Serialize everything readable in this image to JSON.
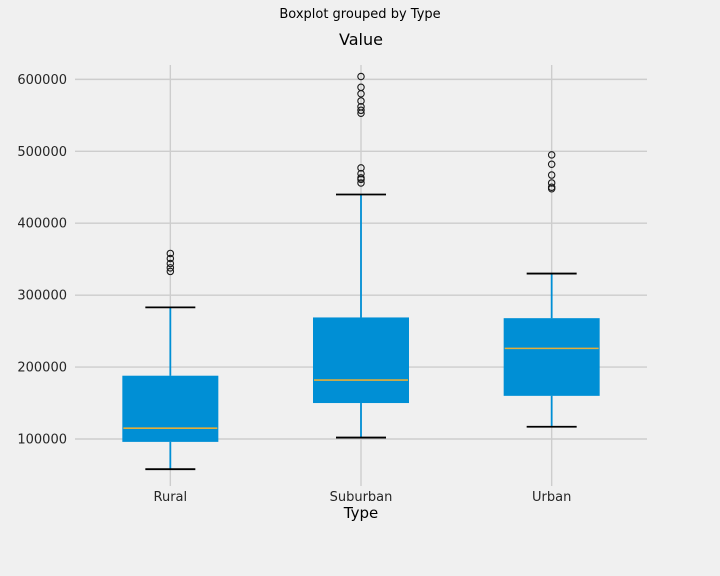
{
  "chart_data": {
    "type": "boxplot",
    "title": "Boxplot grouped by Type",
    "subtitle": "Value",
    "xlabel": "Type",
    "ylabel": "",
    "categories": [
      "Rural",
      "Suburban",
      "Urban"
    ],
    "y_ticks": [
      100000,
      200000,
      300000,
      400000,
      500000,
      600000
    ],
    "ylim": [
      43000,
      620000
    ],
    "grid": true,
    "legend": false,
    "series": [
      {
        "category": "Rural",
        "whisker_low": 58000,
        "q1": 96000,
        "median": 115000,
        "q3": 188000,
        "whisker_high": 283000,
        "outliers": [
          333000,
          338000,
          344000,
          351000,
          358000
        ]
      },
      {
        "category": "Suburban",
        "whisker_low": 102000,
        "q1": 150000,
        "median": 182000,
        "q3": 269000,
        "whisker_high": 440000,
        "outliers": [
          456000,
          461000,
          463000,
          469000,
          477000,
          553000,
          557000,
          562000,
          570000,
          580000,
          589000,
          604000
        ]
      },
      {
        "category": "Urban",
        "whisker_low": 117000,
        "q1": 160000,
        "median": 226000,
        "q3": 268000,
        "whisker_high": 330000,
        "outliers": [
          448000,
          450000,
          456000,
          467000,
          482000,
          495000
        ]
      }
    ],
    "colors": {
      "background": "#f0f0f0",
      "grid": "#cdcdcd",
      "box_fill": "#008fd5",
      "whisker": "#008fd5",
      "cap": "#000000",
      "median": "#e5ae38",
      "outlier": "#1a1a1a",
      "tick_text": "#262626",
      "title_text": "#000000"
    }
  }
}
